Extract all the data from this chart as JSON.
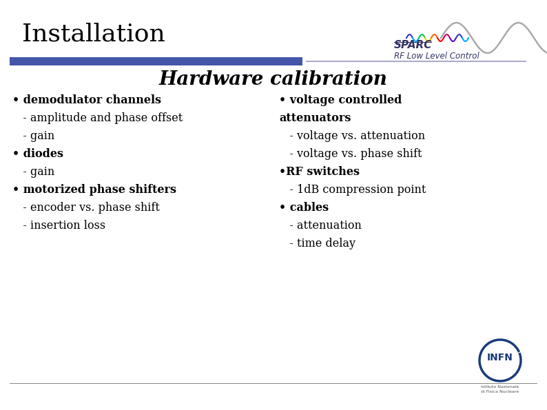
{
  "title": "Installation",
  "subtitle": "Hardware calibration",
  "background_color": "#ffffff",
  "title_color": "#000000",
  "bar_left_color": "#4455aa",
  "bar_right_color": "#aaaacc",
  "left_column": [
    {
      "text": "• demodulator channels",
      "bold": true
    },
    {
      "text": "   - amplitude and phase offset",
      "bold": false
    },
    {
      "text": "   - gain",
      "bold": false
    },
    {
      "text": "• diodes",
      "bold": true
    },
    {
      "text": "   - gain",
      "bold": false
    },
    {
      "text": "• motorized phase shifters",
      "bold": true
    },
    {
      "text": "   - encoder vs. phase shift",
      "bold": false
    },
    {
      "text": "   - insertion loss",
      "bold": false
    }
  ],
  "right_column": [
    {
      "text": "• voltage controlled",
      "bold": true
    },
    {
      "text": "attenuators",
      "bold": true
    },
    {
      "text": "   - voltage vs. attenuation",
      "bold": false
    },
    {
      "text": "   - voltage vs. phase shift",
      "bold": false
    },
    {
      "text": "•RF switches",
      "bold": true
    },
    {
      "text": "   - 1dB compression point",
      "bold": false
    },
    {
      "text": "• cables",
      "bold": true
    },
    {
      "text": "   - attenuation",
      "bold": false
    },
    {
      "text": "   - time delay",
      "bold": false
    }
  ],
  "body_fontsize": 11.5,
  "title_fontsize": 26,
  "subtitle_fontsize": 20,
  "sparc_text_color": "#333366",
  "rflc_text_color": "#333366",
  "infn_circle_color": "#1a3a7a"
}
